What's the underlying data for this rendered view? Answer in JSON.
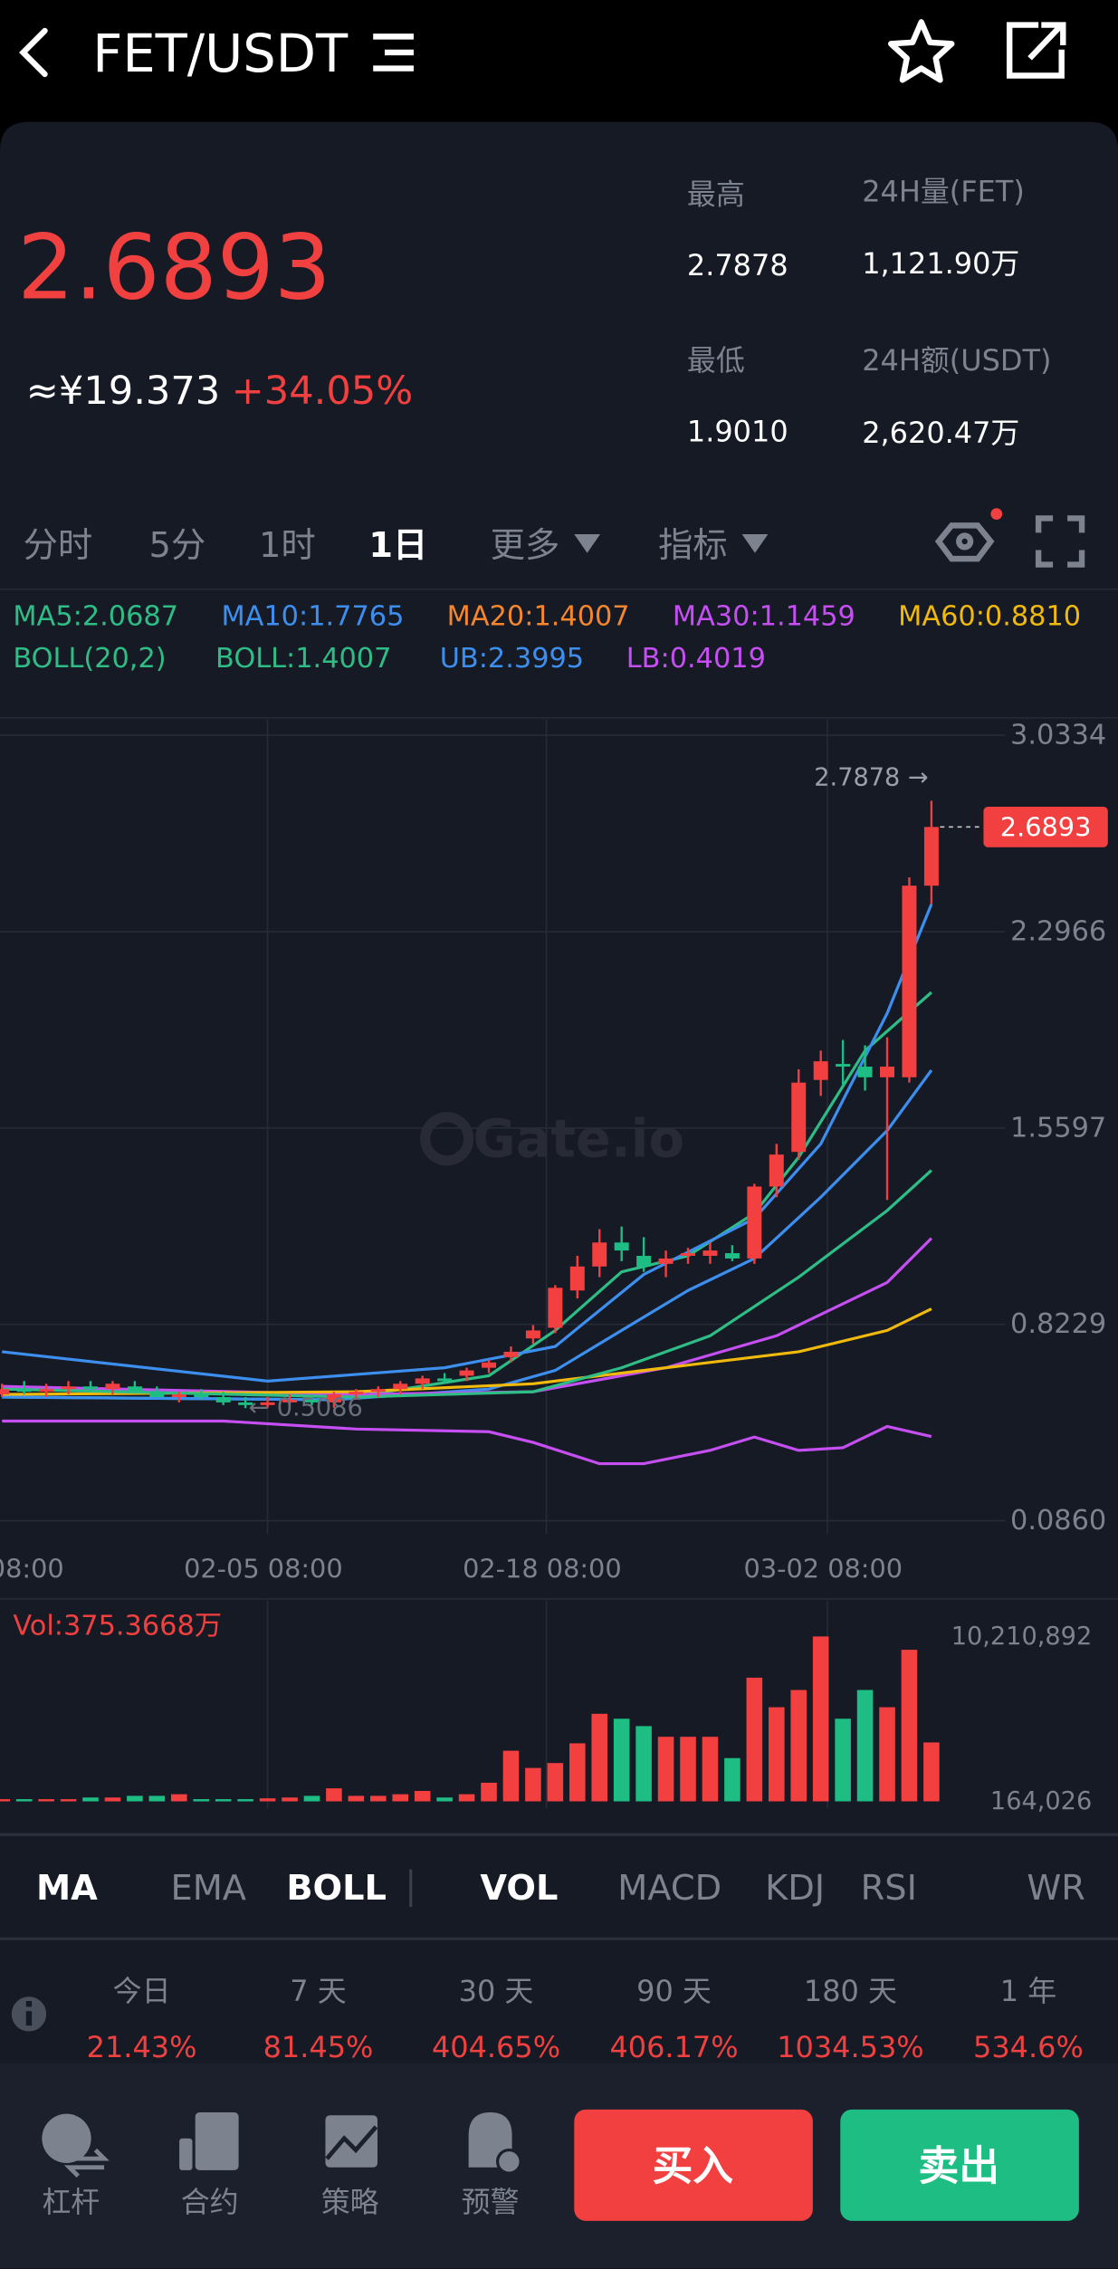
{
  "header": {
    "title": "FET/USDT"
  },
  "ticker": {
    "price": "2.6893",
    "cny": "≈¥19.373",
    "change": "+34.05%",
    "stats": [
      {
        "label": "最高",
        "value": "2.7878"
      },
      {
        "label": "24H量(FET)",
        "value": "1,121.90万"
      },
      {
        "label": "最低",
        "value": "1.9010"
      },
      {
        "label": "24H额(USDT)",
        "value": "2,620.47万"
      }
    ]
  },
  "period_tabs": {
    "items": [
      "分时",
      "5分",
      "1时",
      "1日",
      "更多",
      "指标"
    ],
    "active": 3
  },
  "chart_data": [
    {
      "type": "candlestick",
      "categories": [
        null,
        null,
        null,
        null,
        null,
        null,
        null,
        null,
        null,
        null,
        null,
        null,
        null,
        null,
        null,
        null,
        null,
        null,
        null,
        null,
        null,
        null,
        null,
        null,
        null,
        null,
        null,
        null,
        null,
        null,
        null,
        null,
        null,
        null,
        null,
        null,
        null,
        null,
        null,
        null,
        null,
        null,
        null
      ],
      "open": [
        0.56,
        0.58,
        0.57,
        0.58,
        0.59,
        0.58,
        0.59,
        0.57,
        0.55,
        0.56,
        0.55,
        0.53,
        0.52,
        0.53,
        0.54,
        0.53,
        0.56,
        0.57,
        0.58,
        0.6,
        0.62,
        0.63,
        0.66,
        0.7,
        0.77,
        0.81,
        0.95,
        1.04,
        1.13,
        1.08,
        1.05,
        1.08,
        1.08,
        1.09,
        1.07,
        1.34,
        1.47,
        1.74,
        1.8,
        1.79,
        1.75,
        1.75,
        2.469
      ],
      "high": [
        0.6,
        0.61,
        0.6,
        0.61,
        0.61,
        0.61,
        0.61,
        0.59,
        0.57,
        0.58,
        0.57,
        0.55,
        0.55,
        0.56,
        0.56,
        0.57,
        0.58,
        0.59,
        0.61,
        0.63,
        0.64,
        0.66,
        0.69,
        0.74,
        0.82,
        0.97,
        1.08,
        1.18,
        1.19,
        1.15,
        1.1,
        1.11,
        1.13,
        1.12,
        1.35,
        1.5,
        1.78,
        1.85,
        1.89,
        1.87,
        1.9,
        2.5,
        2.7878
      ],
      "low": [
        0.55,
        0.56,
        0.55,
        0.56,
        0.57,
        0.56,
        0.57,
        0.55,
        0.53,
        0.54,
        0.52,
        0.5086,
        0.51,
        0.52,
        0.52,
        0.51,
        0.54,
        0.55,
        0.56,
        0.58,
        0.6,
        0.61,
        0.64,
        0.68,
        0.75,
        0.79,
        0.92,
        1.0,
        1.06,
        1.02,
        1.0,
        1.05,
        1.05,
        1.06,
        1.05,
        1.3,
        1.44,
        1.68,
        1.72,
        1.7,
        1.29,
        1.73,
        2.4
      ],
      "close": [
        0.58,
        0.57,
        0.58,
        0.59,
        0.58,
        0.6,
        0.57,
        0.55,
        0.56,
        0.55,
        0.53,
        0.52,
        0.53,
        0.54,
        0.53,
        0.56,
        0.57,
        0.58,
        0.6,
        0.62,
        0.61,
        0.65,
        0.68,
        0.72,
        0.8,
        0.96,
        1.04,
        1.13,
        1.1,
        1.04,
        1.07,
        1.09,
        1.1,
        1.07,
        1.34,
        1.46,
        1.73,
        1.81,
        1.79,
        1.75,
        1.79,
        2.469,
        2.6893
      ],
      "up_color": "#f23f3f",
      "down_color": "#1dbd84",
      "indicator_label": "BOLL(20,2)",
      "series": [
        {
          "name": "MA5:2.0687",
          "color": "#2ebd85",
          "x": [
            0,
            15,
            22,
            25,
            28,
            31,
            34,
            36,
            39,
            42
          ],
          "values": [
            0.55,
            0.54,
            0.63,
            0.8,
            1.02,
            1.08,
            1.24,
            1.45,
            1.85,
            2.0687
          ]
        },
        {
          "name": "MA10:1.7765",
          "color": "#3d8fef",
          "x": [
            0,
            15,
            22,
            25,
            28,
            31,
            34,
            37,
            40,
            42
          ],
          "values": [
            0.55,
            0.54,
            0.58,
            0.65,
            0.8,
            0.95,
            1.07,
            1.3,
            1.55,
            1.7765
          ]
        },
        {
          "name": "MA20:1.4007",
          "color": "#f5862c"
        },
        {
          "name": "MA30:1.1459",
          "color": "#c54ff2",
          "x": [
            0,
            16,
            24,
            30,
            35,
            40,
            42
          ],
          "values": [
            0.59,
            0.56,
            0.57,
            0.66,
            0.78,
            0.98,
            1.1459
          ]
        },
        {
          "name": "MA60:0.8810",
          "color": "#f0b90b",
          "x": [
            0,
            16,
            24,
            30,
            36,
            40,
            42
          ],
          "values": [
            0.56,
            0.57,
            0.6,
            0.66,
            0.72,
            0.8,
            0.881
          ]
        },
        {
          "name": "BOLL:1.4007",
          "color": "#2ebd85",
          "x": [
            0,
            16,
            24,
            28,
            32,
            36,
            40,
            42
          ],
          "values": [
            0.58,
            0.55,
            0.57,
            0.66,
            0.78,
            1.0,
            1.25,
            1.4007
          ]
        },
        {
          "name": "UB:2.3995",
          "color": "#3d8fef",
          "x": [
            0,
            12,
            20,
            25,
            29,
            34,
            37,
            40,
            42
          ],
          "values": [
            0.72,
            0.61,
            0.66,
            0.74,
            1.01,
            1.22,
            1.5,
            1.99,
            2.3995
          ]
        },
        {
          "name": "LB:0.4019",
          "color": "#c54ff2",
          "x": [
            0,
            10,
            16,
            22,
            24,
            27,
            29,
            32,
            34,
            36,
            38,
            40,
            42
          ],
          "values": [
            0.46,
            0.46,
            0.43,
            0.42,
            0.38,
            0.3,
            0.3,
            0.35,
            0.4,
            0.35,
            0.36,
            0.44,
            0.4019
          ]
        }
      ],
      "ylim": [
        0.086,
        3.0334
      ],
      "yticks": [
        3.0334,
        2.2966,
        1.5597,
        0.8229,
        {
          "value": 0.086,
          "label": "0.0860"
        }
      ],
      "xticks": [
        {
          "value": -0.6,
          "label": "08:00"
        },
        {
          "value": 12,
          "label": "02-05 08:00"
        },
        {
          "value": 24.6,
          "label": "02-18 08:00"
        },
        {
          "value": 37.3,
          "label": "03-02 08:00"
        }
      ],
      "grid": true,
      "high_marker": {
        "x": 42,
        "value": 2.7878,
        "label": "2.7878 →"
      },
      "low_marker": {
        "x": 11,
        "value": 0.5086,
        "label": "← 0.5086"
      },
      "last_price": 2.6893,
      "watermark": "Gate.io"
    },
    {
      "type": "bar",
      "title": "Vol:375.3668万",
      "categories": [
        null,
        null,
        null,
        null,
        null,
        null,
        null,
        null,
        null,
        null,
        null,
        null,
        null,
        null,
        null,
        null,
        null,
        null,
        null,
        null,
        null,
        null,
        null,
        null,
        null,
        null,
        null,
        null,
        null,
        null,
        null,
        null,
        null,
        null,
        null,
        null,
        null,
        null,
        null,
        null,
        null,
        null,
        null
      ],
      "values": [
        300000,
        300000,
        300000,
        300000,
        400000,
        400000,
        500000,
        500000,
        600000,
        300000,
        300000,
        300000,
        350000,
        400000,
        500000,
        960000,
        500000,
        500000,
        600000,
        800000,
        400000,
        600000,
        1300000,
        3250000,
        2200000,
        2500000,
        3700000,
        5500000,
        5200000,
        4750000,
        4100000,
        4100000,
        4100000,
        2800000,
        7700000,
        5900000,
        6950000,
        10210892,
        5200000,
        6950000,
        5900000,
        9400000,
        3753668
      ],
      "ylim": [
        164026,
        10210892
      ],
      "yticks": [
        {
          "value": 10210892,
          "label": "10,210,892"
        },
        {
          "value": 164026,
          "label": "164,026"
        }
      ]
    }
  ],
  "indicator_tabs": {
    "items": [
      "MA",
      "EMA",
      "BOLL",
      "VOL",
      "MACD",
      "KDJ",
      "RSI",
      "WR"
    ],
    "active": [
      0,
      2,
      3
    ]
  },
  "performance": {
    "labels": [
      "今日",
      "7 天",
      "30 天",
      "90 天",
      "180 天",
      "1 年"
    ],
    "values": [
      "21.43%",
      "81.45%",
      "404.65%",
      "406.17%",
      "1034.53%",
      "534.6%"
    ]
  },
  "bottom_nav": {
    "items": [
      "杠杆",
      "合约",
      "策略",
      "预警"
    ]
  },
  "buttons": {
    "buy": "买入",
    "sell": "卖出"
  }
}
